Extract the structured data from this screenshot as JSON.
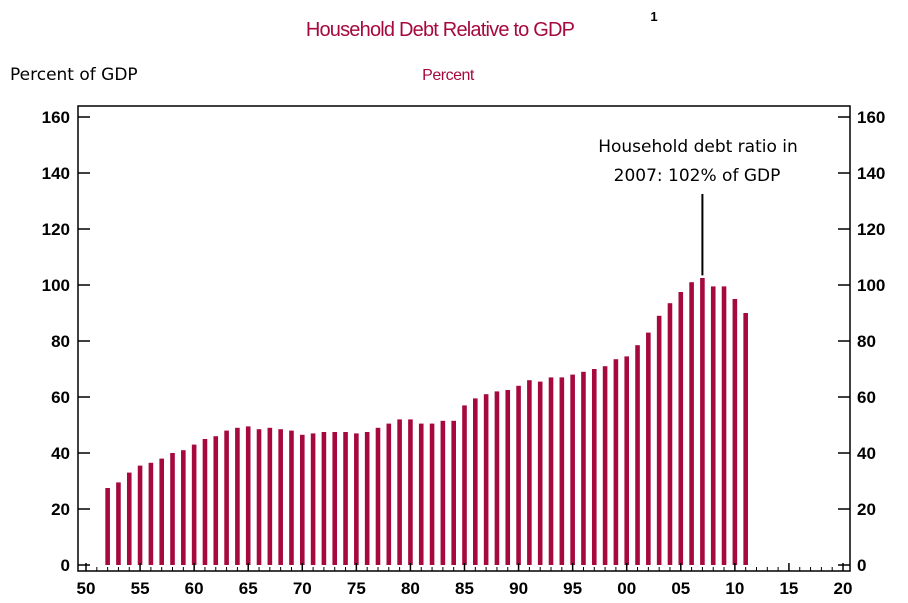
{
  "chart_data": {
    "type": "bar",
    "title": "Household Debt Relative to GDP",
    "title_superscript": "1",
    "subtitle": "Percent",
    "ylabel": "Percent of GDP",
    "xlim": [
      1950,
      2020
    ],
    "ylim": [
      0,
      160
    ],
    "x_ticks": [
      "50",
      "55",
      "60",
      "65",
      "70",
      "75",
      "80",
      "85",
      "90",
      "95",
      "00",
      "05",
      "10",
      "15",
      "20"
    ],
    "y_ticks": [
      0,
      20,
      40,
      60,
      80,
      100,
      120,
      140,
      160
    ],
    "grid": false,
    "colors": {
      "bars": "#a6093d",
      "title": "#a6093d",
      "axis": "#000000"
    },
    "annotation": {
      "lines": [
        "Household debt ratio in",
        "2007:  102% of GDP"
      ],
      "x": 2007,
      "y": 102
    },
    "x": [
      1952,
      1953,
      1954,
      1955,
      1956,
      1957,
      1958,
      1959,
      1960,
      1961,
      1962,
      1963,
      1964,
      1965,
      1966,
      1967,
      1968,
      1969,
      1970,
      1971,
      1972,
      1973,
      1974,
      1975,
      1976,
      1977,
      1978,
      1979,
      1980,
      1981,
      1982,
      1983,
      1984,
      1985,
      1986,
      1987,
      1988,
      1989,
      1990,
      1991,
      1992,
      1993,
      1994,
      1995,
      1996,
      1997,
      1998,
      1999,
      2000,
      2001,
      2002,
      2003,
      2004,
      2005,
      2006,
      2007,
      2008,
      2009,
      2010,
      2011
    ],
    "values": [
      27.5,
      29.5,
      33,
      35.5,
      36.5,
      38,
      40,
      41,
      43,
      45,
      46,
      48,
      49,
      49.5,
      48.5,
      49,
      48.5,
      48,
      46.5,
      47,
      47.5,
      47.5,
      47.5,
      47,
      47.5,
      49,
      50.5,
      52,
      52,
      50.5,
      50.5,
      51.5,
      51.5,
      57,
      59.5,
      61,
      62,
      62.5,
      64,
      66,
      65.5,
      67,
      67,
      68,
      69,
      70,
      71,
      73.5,
      74.5,
      78.5,
      83,
      89,
      93.5,
      97.5,
      101,
      102.5,
      99.5,
      99.5,
      95,
      90
    ]
  }
}
